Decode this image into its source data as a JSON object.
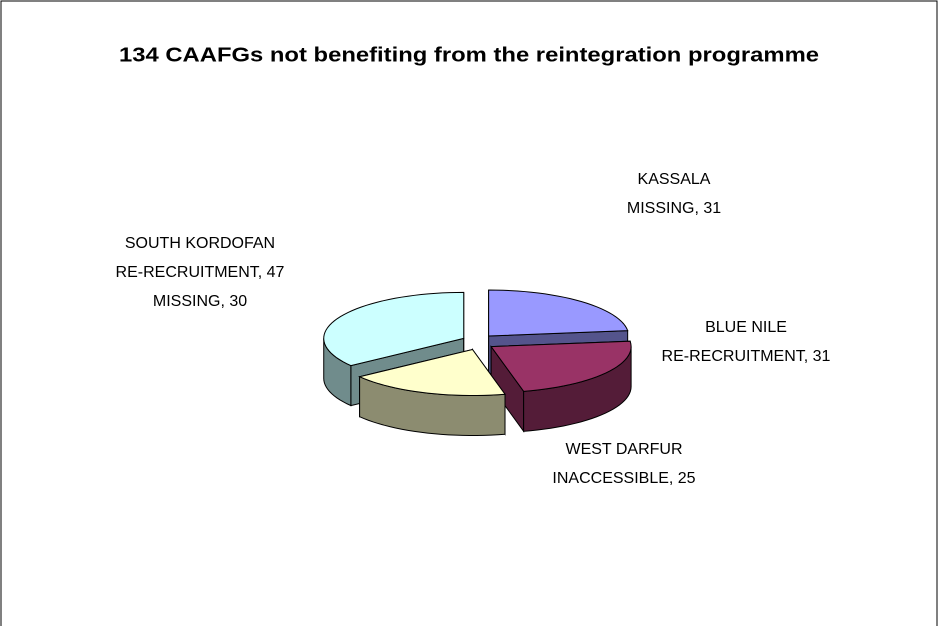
{
  "chart_data": {
    "type": "pie",
    "title": "134 CAAFGs not benefiting from the reintegration programme",
    "categories": [
      "KASSALA",
      "BLUE NILE",
      "WEST DARFUR",
      "SOUTH KORDOFAN"
    ],
    "values": [
      31,
      31,
      25,
      47
    ],
    "value_labels": [
      "MISSING, 31",
      "RE-RECRUITMENT, 31",
      "INACCESSIBLE, 25",
      "RE-RECRUITMENT, 47"
    ],
    "annotations": [
      {
        "category": 3,
        "text": "MISSING, 30"
      }
    ],
    "colors": [
      "#9999ff",
      "#993366",
      "#ffffcc",
      "#ccffff"
    ]
  }
}
